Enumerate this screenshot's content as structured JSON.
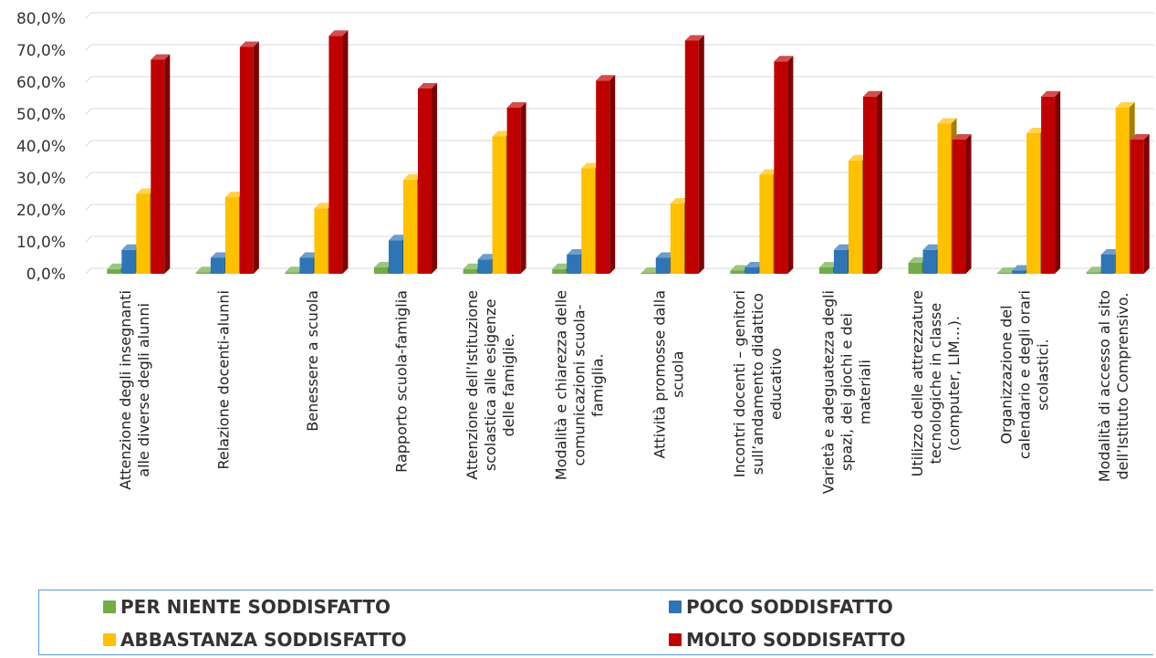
{
  "chart_data": {
    "type": "bar",
    "style": "3d-clustered-column",
    "yaxis": {
      "min": 0,
      "max": 80,
      "step": 10,
      "format": "percent-one-decimal",
      "decimal_separator": ","
    },
    "grid": true,
    "legend_position": "bottom",
    "categories": [
      [
        "Attenzione degli insegnanti",
        "alle diverse degli alunni"
      ],
      [
        "Relazione docenti-alunni"
      ],
      [
        "Benessere a scuola"
      ],
      [
        "Rapporto scuola-famiglia"
      ],
      [
        "Attenzione dell’Istituzione",
        "scolastica alle esigenze",
        "delle famiglie."
      ],
      [
        "Modalità e chiarezza delle",
        "comunicazioni scuola-",
        "famiglia."
      ],
      [
        "Attività promosse dalla",
        "scuola"
      ],
      [
        "Incontri docenti – genitori",
        "sull’andamento didattico",
        "educativo"
      ],
      [
        "Varietà e adeguatezza degli",
        "spazi, dei giochi e dei",
        "materiali"
      ],
      [
        "Utilizzo delle attrezzature",
        "tecnologiche in classe",
        "(computer, LIM…)."
      ],
      [
        "Organizzazione del",
        "calendario e degli orari",
        "scolastici."
      ],
      [
        "Modalità di accesso al sito",
        "dell’Istituto Comprensivo."
      ]
    ],
    "series": [
      {
        "name": "PER NIENTE SODDISFATTO",
        "color": "#70ad47",
        "values": [
          1.5,
          0.5,
          0.5,
          2.0,
          1.5,
          1.5,
          0.3,
          1.0,
          2.0,
          3.5,
          0.3,
          0.5
        ]
      },
      {
        "name": "POCO SODDISFATTO",
        "color": "#2e75b6",
        "values": [
          7.5,
          5.0,
          5.0,
          10.5,
          4.5,
          6.0,
          5.0,
          2.0,
          7.5,
          7.5,
          1.0,
          6.0
        ]
      },
      {
        "name": "ABBASTANZA SODDISFATTO",
        "color": "#ffc000",
        "values": [
          25.0,
          24.0,
          20.5,
          29.5,
          43.0,
          33.0,
          22.0,
          31.0,
          35.5,
          47.0,
          44.0,
          52.0
        ]
      },
      {
        "name": "MOLTO SODDISFATTO",
        "color": "#c00000",
        "values": [
          67.0,
          71.0,
          74.5,
          58.0,
          52.0,
          60.5,
          73.0,
          66.5,
          55.5,
          42.0,
          55.5,
          42.0
        ]
      }
    ]
  }
}
